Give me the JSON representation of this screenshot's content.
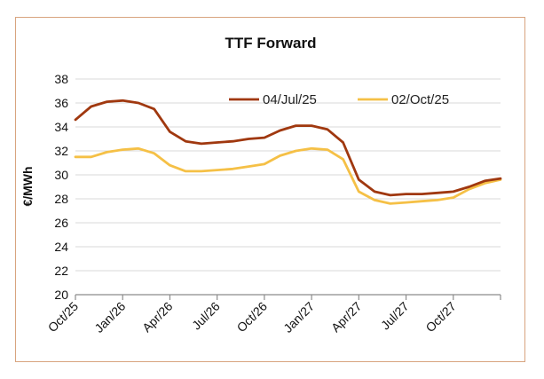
{
  "chart_data": {
    "type": "line",
    "title": "TTF Forward",
    "xlabel": "",
    "ylabel": "€/MWh",
    "ylim": [
      20,
      38
    ],
    "yticks": [
      "20",
      "22",
      "24",
      "26",
      "28",
      "30",
      "32",
      "34",
      "36",
      "38"
    ],
    "categories": [
      "Oct/25",
      "Nov/25",
      "Dec/25",
      "Jan/26",
      "Feb/26",
      "Mar/26",
      "Apr/26",
      "May/26",
      "Jun/26",
      "Jul/26",
      "Aug/26",
      "Sep/26",
      "Oct/26",
      "Nov/26",
      "Dec/26",
      "Jan/27",
      "Feb/27",
      "Mar/27",
      "Apr/27",
      "May/27",
      "Jun/27",
      "Jul/27",
      "Aug/27",
      "Sep/27",
      "Oct/27",
      "Nov/27",
      "Dec/27",
      "Jan/28"
    ],
    "xticks": [
      "Oct/25",
      "Jan/26",
      "Apr/26",
      "Jul/26",
      "Oct/26",
      "Jan/27",
      "Apr/27",
      "Jul/27",
      "Oct/27"
    ],
    "series": [
      {
        "name": "04/Jul/25",
        "color": "#a0380f",
        "values": [
          34.6,
          35.7,
          36.1,
          36.2,
          36.0,
          35.5,
          33.6,
          32.8,
          32.6,
          32.7,
          32.8,
          33.0,
          33.1,
          33.7,
          34.1,
          34.1,
          33.8,
          32.7,
          29.6,
          28.6,
          28.3,
          28.4,
          28.4,
          28.5,
          28.6,
          29.0,
          29.5,
          29.7
        ]
      },
      {
        "name": "02/Oct/25",
        "color": "#f5c046",
        "values": [
          31.5,
          31.5,
          31.9,
          32.1,
          32.2,
          31.8,
          30.8,
          30.3,
          30.3,
          30.4,
          30.5,
          30.7,
          30.9,
          31.6,
          32.0,
          32.2,
          32.1,
          31.3,
          28.6,
          27.9,
          27.6,
          27.7,
          27.8,
          27.9,
          28.1,
          28.8,
          29.3,
          29.6
        ]
      }
    ],
    "legend_position": "top"
  }
}
